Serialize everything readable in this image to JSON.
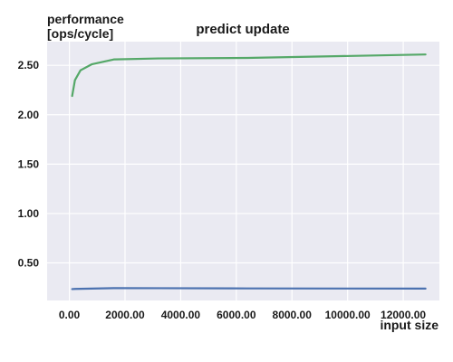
{
  "chart_data": {
    "type": "line",
    "title": "predict update",
    "ylabel_line1": "performance",
    "ylabel_line2": "[ops/cycle]",
    "xlabel": "input size",
    "xlim": [
      -800,
      13300
    ],
    "ylim": [
      0.12,
      2.74
    ],
    "x_ticks": [
      0,
      2000,
      4000,
      6000,
      8000,
      10000,
      12000
    ],
    "x_tick_labels": [
      "0.00",
      "2000.00",
      "4000.00",
      "6000.00",
      "8000.00",
      "10000.00",
      "12000.00"
    ],
    "y_ticks": [
      0.5,
      1.0,
      1.5,
      2.0,
      2.5
    ],
    "y_tick_labels": [
      "0.50",
      "1.00",
      "1.50",
      "2.00",
      "2.50"
    ],
    "grid": true,
    "background_color": "#eaeaf2",
    "grid_color": "#ffffff",
    "series": [
      {
        "color": "#55a868",
        "x": [
          100,
          200,
          400,
          800,
          1600,
          3200,
          6400,
          12800
        ],
        "y": [
          2.19,
          2.35,
          2.45,
          2.51,
          2.56,
          2.57,
          2.575,
          2.61
        ]
      },
      {
        "color": "#4c72b0",
        "x": [
          100,
          200,
          400,
          800,
          1600,
          3200,
          6400,
          12800
        ],
        "y": [
          0.235,
          0.237,
          0.238,
          0.24,
          0.245,
          0.244,
          0.242,
          0.24
        ]
      }
    ]
  }
}
